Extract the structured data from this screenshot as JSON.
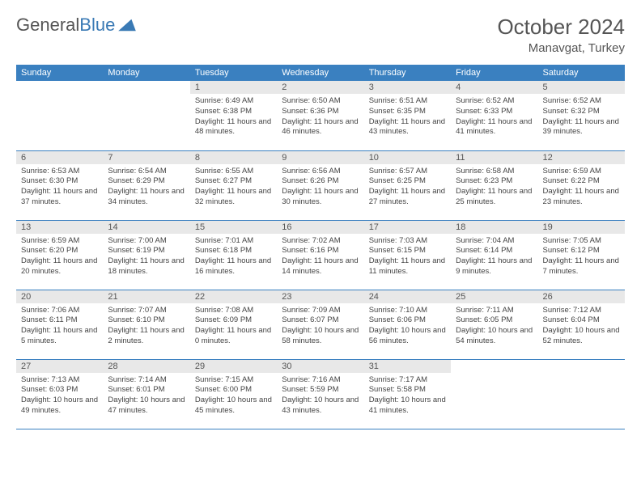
{
  "logo": {
    "word1": "General",
    "word2": "Blue"
  },
  "title": "October 2024",
  "location": "Manavgat, Turkey",
  "colors": {
    "header_bg": "#3a80c0",
    "header_text": "#ffffff",
    "daynum_bg": "#e8e8e8",
    "text": "#444444",
    "row_border": "#3a80c0",
    "logo_blue": "#3a7ab5"
  },
  "weekdays": [
    "Sunday",
    "Monday",
    "Tuesday",
    "Wednesday",
    "Thursday",
    "Friday",
    "Saturday"
  ],
  "weeks": [
    [
      {
        "empty": true
      },
      {
        "empty": true
      },
      {
        "num": "1",
        "sunrise": "Sunrise: 6:49 AM",
        "sunset": "Sunset: 6:38 PM",
        "daylight": "Daylight: 11 hours and 48 minutes."
      },
      {
        "num": "2",
        "sunrise": "Sunrise: 6:50 AM",
        "sunset": "Sunset: 6:36 PM",
        "daylight": "Daylight: 11 hours and 46 minutes."
      },
      {
        "num": "3",
        "sunrise": "Sunrise: 6:51 AM",
        "sunset": "Sunset: 6:35 PM",
        "daylight": "Daylight: 11 hours and 43 minutes."
      },
      {
        "num": "4",
        "sunrise": "Sunrise: 6:52 AM",
        "sunset": "Sunset: 6:33 PM",
        "daylight": "Daylight: 11 hours and 41 minutes."
      },
      {
        "num": "5",
        "sunrise": "Sunrise: 6:52 AM",
        "sunset": "Sunset: 6:32 PM",
        "daylight": "Daylight: 11 hours and 39 minutes."
      }
    ],
    [
      {
        "num": "6",
        "sunrise": "Sunrise: 6:53 AM",
        "sunset": "Sunset: 6:30 PM",
        "daylight": "Daylight: 11 hours and 37 minutes."
      },
      {
        "num": "7",
        "sunrise": "Sunrise: 6:54 AM",
        "sunset": "Sunset: 6:29 PM",
        "daylight": "Daylight: 11 hours and 34 minutes."
      },
      {
        "num": "8",
        "sunrise": "Sunrise: 6:55 AM",
        "sunset": "Sunset: 6:27 PM",
        "daylight": "Daylight: 11 hours and 32 minutes."
      },
      {
        "num": "9",
        "sunrise": "Sunrise: 6:56 AM",
        "sunset": "Sunset: 6:26 PM",
        "daylight": "Daylight: 11 hours and 30 minutes."
      },
      {
        "num": "10",
        "sunrise": "Sunrise: 6:57 AM",
        "sunset": "Sunset: 6:25 PM",
        "daylight": "Daylight: 11 hours and 27 minutes."
      },
      {
        "num": "11",
        "sunrise": "Sunrise: 6:58 AM",
        "sunset": "Sunset: 6:23 PM",
        "daylight": "Daylight: 11 hours and 25 minutes."
      },
      {
        "num": "12",
        "sunrise": "Sunrise: 6:59 AM",
        "sunset": "Sunset: 6:22 PM",
        "daylight": "Daylight: 11 hours and 23 minutes."
      }
    ],
    [
      {
        "num": "13",
        "sunrise": "Sunrise: 6:59 AM",
        "sunset": "Sunset: 6:20 PM",
        "daylight": "Daylight: 11 hours and 20 minutes."
      },
      {
        "num": "14",
        "sunrise": "Sunrise: 7:00 AM",
        "sunset": "Sunset: 6:19 PM",
        "daylight": "Daylight: 11 hours and 18 minutes."
      },
      {
        "num": "15",
        "sunrise": "Sunrise: 7:01 AM",
        "sunset": "Sunset: 6:18 PM",
        "daylight": "Daylight: 11 hours and 16 minutes."
      },
      {
        "num": "16",
        "sunrise": "Sunrise: 7:02 AM",
        "sunset": "Sunset: 6:16 PM",
        "daylight": "Daylight: 11 hours and 14 minutes."
      },
      {
        "num": "17",
        "sunrise": "Sunrise: 7:03 AM",
        "sunset": "Sunset: 6:15 PM",
        "daylight": "Daylight: 11 hours and 11 minutes."
      },
      {
        "num": "18",
        "sunrise": "Sunrise: 7:04 AM",
        "sunset": "Sunset: 6:14 PM",
        "daylight": "Daylight: 11 hours and 9 minutes."
      },
      {
        "num": "19",
        "sunrise": "Sunrise: 7:05 AM",
        "sunset": "Sunset: 6:12 PM",
        "daylight": "Daylight: 11 hours and 7 minutes."
      }
    ],
    [
      {
        "num": "20",
        "sunrise": "Sunrise: 7:06 AM",
        "sunset": "Sunset: 6:11 PM",
        "daylight": "Daylight: 11 hours and 5 minutes."
      },
      {
        "num": "21",
        "sunrise": "Sunrise: 7:07 AM",
        "sunset": "Sunset: 6:10 PM",
        "daylight": "Daylight: 11 hours and 2 minutes."
      },
      {
        "num": "22",
        "sunrise": "Sunrise: 7:08 AM",
        "sunset": "Sunset: 6:09 PM",
        "daylight": "Daylight: 11 hours and 0 minutes."
      },
      {
        "num": "23",
        "sunrise": "Sunrise: 7:09 AM",
        "sunset": "Sunset: 6:07 PM",
        "daylight": "Daylight: 10 hours and 58 minutes."
      },
      {
        "num": "24",
        "sunrise": "Sunrise: 7:10 AM",
        "sunset": "Sunset: 6:06 PM",
        "daylight": "Daylight: 10 hours and 56 minutes."
      },
      {
        "num": "25",
        "sunrise": "Sunrise: 7:11 AM",
        "sunset": "Sunset: 6:05 PM",
        "daylight": "Daylight: 10 hours and 54 minutes."
      },
      {
        "num": "26",
        "sunrise": "Sunrise: 7:12 AM",
        "sunset": "Sunset: 6:04 PM",
        "daylight": "Daylight: 10 hours and 52 minutes."
      }
    ],
    [
      {
        "num": "27",
        "sunrise": "Sunrise: 7:13 AM",
        "sunset": "Sunset: 6:03 PM",
        "daylight": "Daylight: 10 hours and 49 minutes."
      },
      {
        "num": "28",
        "sunrise": "Sunrise: 7:14 AM",
        "sunset": "Sunset: 6:01 PM",
        "daylight": "Daylight: 10 hours and 47 minutes."
      },
      {
        "num": "29",
        "sunrise": "Sunrise: 7:15 AM",
        "sunset": "Sunset: 6:00 PM",
        "daylight": "Daylight: 10 hours and 45 minutes."
      },
      {
        "num": "30",
        "sunrise": "Sunrise: 7:16 AM",
        "sunset": "Sunset: 5:59 PM",
        "daylight": "Daylight: 10 hours and 43 minutes."
      },
      {
        "num": "31",
        "sunrise": "Sunrise: 7:17 AM",
        "sunset": "Sunset: 5:58 PM",
        "daylight": "Daylight: 10 hours and 41 minutes."
      },
      {
        "empty": true
      },
      {
        "empty": true
      }
    ]
  ]
}
